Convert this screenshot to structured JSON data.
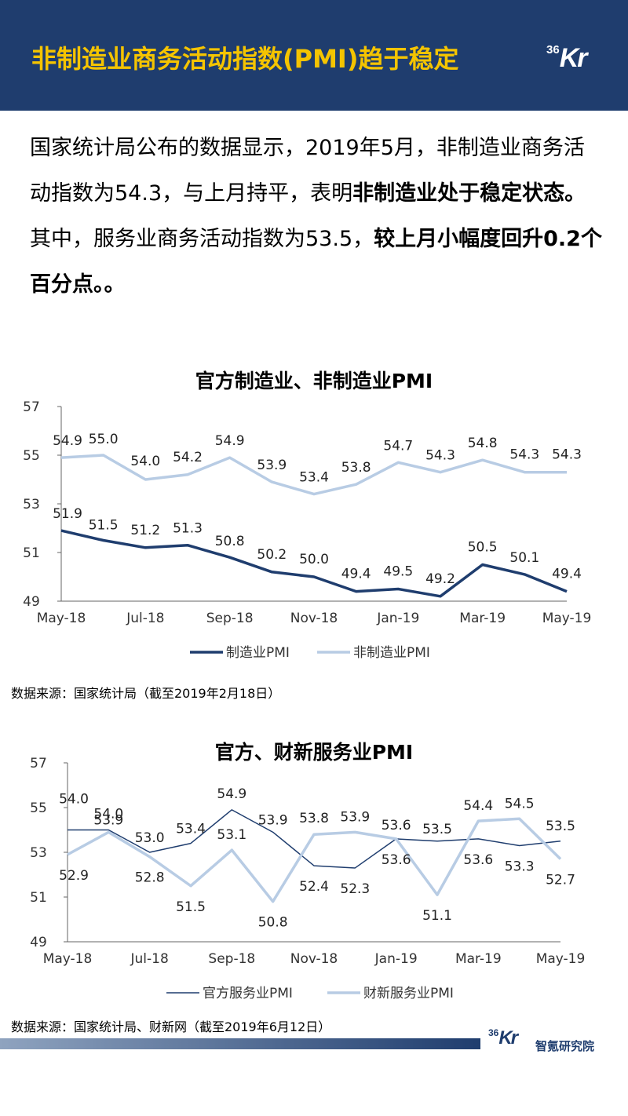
{
  "header": {
    "title": "非制造业商务活动指数(PMI)趋于稳定",
    "logo_num": "36",
    "logo_letters": "Kr",
    "background": "#1f3d6e",
    "title_color": "#f5c400"
  },
  "intro": {
    "p1_normal": "国家统计局公布的数据显示，2019年5月，非制造业商务活动指数为54.3，与上月持平，表明",
    "p1_bold": "非制造业处于稳定状态。",
    "p2_normal": "其中，服务业商务活动指数为53.5，",
    "p2_bold": "较上月小幅度回升0.2个百分点。。"
  },
  "chart1_source": "数据来源：国家统计局（截至2019年2月18日）",
  "chart2_source": "数据来源：国家统计局、财新网（截至2019年6月12日）",
  "footer": {
    "logo_num": "36",
    "logo_letters": "Kr",
    "text": "智氪研究院"
  },
  "chart_data": [
    {
      "type": "line",
      "title": "官方制造业、非制造业PMI",
      "x": [
        "May-18",
        "Jun-18",
        "Jul-18",
        "Aug-18",
        "Sep-18",
        "Oct-18",
        "Nov-18",
        "Dec-18",
        "Jan-19",
        "Feb-19",
        "Mar-19",
        "Apr-19",
        "May-19"
      ],
      "x_tick_labels": [
        "May-18",
        "Jul-18",
        "Sep-18",
        "Nov-18",
        "Jan-19",
        "Mar-19",
        "May-19"
      ],
      "ylim": [
        49,
        57
      ],
      "y_ticks": [
        49,
        51,
        53,
        55,
        57
      ],
      "grid": false,
      "legend_position": "bottom",
      "series": [
        {
          "name": "制造业PMI",
          "color": "#1f3d6e",
          "width": 3.5,
          "values": [
            51.9,
            51.5,
            51.2,
            51.3,
            50.8,
            50.2,
            50.0,
            49.4,
            49.5,
            49.2,
            50.5,
            50.1,
            49.4
          ]
        },
        {
          "name": "非制造业PMI",
          "color": "#b8cce4",
          "width": 3.5,
          "values": [
            54.9,
            55.0,
            54.0,
            54.2,
            54.9,
            53.9,
            53.4,
            53.8,
            54.7,
            54.3,
            54.8,
            54.3,
            54.3
          ]
        }
      ]
    },
    {
      "type": "line",
      "title": "官方、财新服务业PMI",
      "x": [
        "May-18",
        "Jun-18",
        "Jul-18",
        "Aug-18",
        "Sep-18",
        "Oct-18",
        "Nov-18",
        "Dec-18",
        "Jan-19",
        "Feb-19",
        "Mar-19",
        "Apr-19",
        "May-19"
      ],
      "x_tick_labels": [
        "May-18",
        "Jul-18",
        "Sep-18",
        "Nov-18",
        "Jan-19",
        "Mar-19",
        "May-19"
      ],
      "ylim": [
        49,
        57
      ],
      "y_ticks": [
        49,
        51,
        53,
        55,
        57
      ],
      "grid": false,
      "legend_position": "bottom",
      "series": [
        {
          "name": "官方服务业PMI",
          "color": "#1f3d6e",
          "width": 1.5,
          "values": [
            54.0,
            54.0,
            53.0,
            53.4,
            54.9,
            53.9,
            52.4,
            52.3,
            53.6,
            53.5,
            53.6,
            53.3,
            53.5
          ]
        },
        {
          "name": "财新服务业PMI",
          "color": "#b8cce4",
          "width": 3.5,
          "values": [
            52.9,
            53.9,
            52.8,
            51.5,
            53.1,
            50.8,
            53.8,
            53.9,
            53.6,
            51.1,
            54.4,
            54.5,
            52.7
          ]
        }
      ]
    }
  ]
}
